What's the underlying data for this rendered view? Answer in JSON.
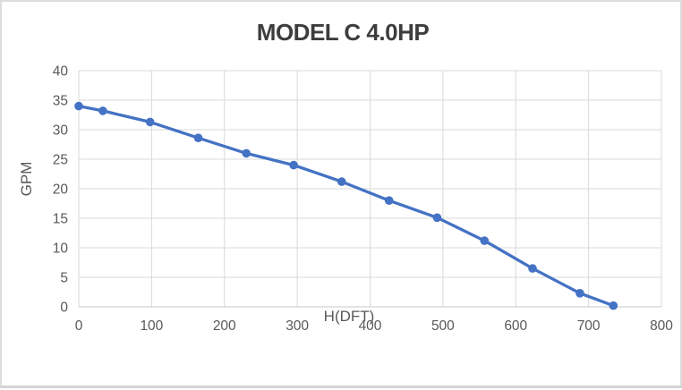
{
  "frame": {
    "background": "#ffffff",
    "border_color": "#dcdcdc"
  },
  "chart_data": {
    "type": "line",
    "title": "MODEL C 4.0HP",
    "xlabel": "H(DFT)",
    "ylabel": "GPM",
    "xlim": [
      0,
      800
    ],
    "ylim": [
      0,
      40
    ],
    "x_ticks": [
      0,
      100,
      200,
      300,
      400,
      500,
      600,
      700,
      800
    ],
    "y_ticks": [
      0,
      5,
      10,
      15,
      20,
      25,
      30,
      35,
      40
    ],
    "grid": true,
    "legend_position": "none",
    "series": [
      {
        "name": "MODEL C 4.0HP",
        "color": "#4472C4",
        "marker": "circle",
        "points": [
          [
            0,
            34
          ],
          [
            33,
            33.2
          ],
          [
            98,
            31.3
          ],
          [
            164,
            28.6
          ],
          [
            230,
            26
          ],
          [
            295,
            24
          ],
          [
            361,
            21.2
          ],
          [
            426,
            18
          ],
          [
            492,
            15.1
          ],
          [
            557,
            11.2
          ],
          [
            623,
            6.5
          ],
          [
            688,
            2.3
          ],
          [
            734,
            0.2
          ]
        ]
      }
    ],
    "colors": {
      "gridline": "#d9d9d9",
      "axis_line": "#c8c8c8",
      "tick_label": "#595959",
      "axis_title": "#595959",
      "chart_title": "#3d3d3d"
    }
  }
}
